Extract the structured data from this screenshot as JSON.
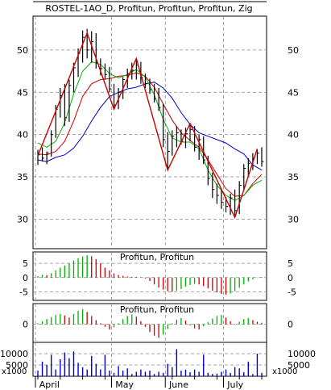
{
  "chart_data": {
    "type": "line",
    "main": {
      "title": "ROSTEL-1AO_D, Profitun, Profitun, Profitun, Zig",
      "ylim": [
        26.5,
        54
      ],
      "yticks": [
        50,
        45,
        40,
        35,
        30
      ],
      "bars": [
        [
          0,
          37.0,
          38.2,
          36.4,
          37.6
        ],
        [
          1,
          37.6,
          38.5,
          36.8,
          37.2
        ],
        [
          2,
          37.2,
          38.0,
          36.5,
          37.8
        ],
        [
          3,
          37.8,
          40.5,
          37.4,
          40.0
        ],
        [
          4,
          40.0,
          43.5,
          39.6,
          43.0
        ],
        [
          5,
          43.0,
          45.5,
          42.0,
          44.6
        ],
        [
          6,
          44.6,
          46.0,
          41.0,
          42.0
        ],
        [
          7,
          42.0,
          46.5,
          41.5,
          45.8
        ],
        [
          8,
          45.8,
          48.5,
          45.0,
          47.9
        ],
        [
          9,
          47.9,
          50.2,
          46.8,
          49.6
        ],
        [
          10,
          49.6,
          52.3,
          48.5,
          51.5
        ],
        [
          11,
          51.5,
          52.5,
          49.0,
          50.0
        ],
        [
          12,
          50.0,
          52.2,
          48.5,
          51.0
        ],
        [
          13,
          51.0,
          52.0,
          47.8,
          48.5
        ],
        [
          14,
          48.5,
          49.0,
          47.0,
          47.8
        ],
        [
          15,
          47.8,
          48.4,
          46.5,
          47.1
        ],
        [
          16,
          47.1,
          48.0,
          45.0,
          45.4
        ],
        [
          17,
          45.4,
          46.0,
          43.0,
          43.5
        ],
        [
          18,
          43.5,
          45.5,
          43.0,
          45.0
        ],
        [
          19,
          45.0,
          46.8,
          44.2,
          46.5
        ],
        [
          20,
          46.5,
          47.8,
          45.5,
          47.2
        ],
        [
          21,
          47.2,
          48.5,
          46.5,
          47.6
        ],
        [
          22,
          47.6,
          49.0,
          46.5,
          48.2
        ],
        [
          23,
          48.2,
          48.6,
          46.0,
          46.8
        ],
        [
          24,
          46.8,
          47.2,
          45.5,
          46.0
        ],
        [
          25,
          46.0,
          46.6,
          44.8,
          45.3
        ],
        [
          26,
          45.3,
          46.0,
          43.8,
          44.2
        ],
        [
          27,
          44.2,
          45.5,
          42.8,
          43.2
        ],
        [
          28,
          43.2,
          43.6,
          38.5,
          39.4
        ],
        [
          29,
          39.4,
          40.3,
          35.8,
          38.0
        ],
        [
          30,
          38.0,
          40.5,
          37.5,
          39.8
        ],
        [
          31,
          39.8,
          41.0,
          38.5,
          40.2
        ],
        [
          32,
          40.2,
          40.6,
          38.8,
          39.2
        ],
        [
          33,
          39.2,
          40.8,
          38.4,
          40.1
        ],
        [
          34,
          40.1,
          41.3,
          39.2,
          40.6
        ],
        [
          35,
          40.6,
          41.0,
          38.0,
          38.5
        ],
        [
          36,
          38.5,
          40.0,
          37.0,
          39.4
        ],
        [
          37,
          39.4,
          39.8,
          36.5,
          37.0
        ],
        [
          38,
          37.0,
          37.5,
          34.0,
          34.8
        ],
        [
          39,
          34.8,
          35.5,
          32.5,
          33.5
        ],
        [
          40,
          33.5,
          34.2,
          31.8,
          32.8
        ],
        [
          41,
          32.8,
          33.6,
          31.2,
          32.0
        ],
        [
          42,
          32.0,
          32.6,
          30.8,
          31.5
        ],
        [
          43,
          31.5,
          33.0,
          30.5,
          32.5
        ],
        [
          44,
          32.5,
          33.5,
          30.2,
          31.0
        ],
        [
          45,
          31.0,
          34.5,
          30.6,
          34.0
        ],
        [
          46,
          34.0,
          36.5,
          33.5,
          36.0
        ],
        [
          47,
          36.0,
          37.2,
          35.0,
          36.6
        ],
        [
          48,
          36.6,
          37.8,
          35.8,
          37.2
        ],
        [
          49,
          37.2,
          38.3,
          36.5,
          37.8
        ],
        [
          50,
          37.8,
          38.5,
          36.2,
          36.8
        ]
      ],
      "ma_slow": {
        "color": "#0000cc",
        "points": [
          [
            0,
            37.0
          ],
          [
            2,
            36.8
          ],
          [
            4,
            37.3
          ],
          [
            6,
            37.6
          ],
          [
            8,
            38.4
          ],
          [
            10,
            39.8
          ],
          [
            12,
            41.6
          ],
          [
            14,
            43.2
          ],
          [
            16,
            44.5
          ],
          [
            18,
            45.0
          ],
          [
            20,
            45.4
          ],
          [
            22,
            45.6
          ],
          [
            24,
            46.0
          ],
          [
            26,
            46.2
          ],
          [
            28,
            45.5
          ],
          [
            30,
            44.3
          ],
          [
            32,
            42.6
          ],
          [
            34,
            41.2
          ],
          [
            36,
            40.2
          ],
          [
            38,
            39.8
          ],
          [
            40,
            39.4
          ],
          [
            42,
            39.0
          ],
          [
            44,
            38.3
          ],
          [
            46,
            37.7
          ],
          [
            48,
            36.4
          ],
          [
            50,
            35.8
          ]
        ]
      },
      "ma_mid": {
        "color": "#cc0000",
        "points": [
          [
            0,
            37.7
          ],
          [
            2,
            37.6
          ],
          [
            4,
            38.0
          ],
          [
            6,
            39.2
          ],
          [
            8,
            41.6
          ],
          [
            10,
            44.5
          ],
          [
            12,
            46.0
          ],
          [
            14,
            46.5
          ],
          [
            16,
            46.6
          ],
          [
            18,
            46.9
          ],
          [
            20,
            47.0
          ],
          [
            22,
            47.3
          ],
          [
            24,
            46.9
          ],
          [
            26,
            45.6
          ],
          [
            28,
            43.6
          ],
          [
            30,
            41.7
          ],
          [
            32,
            40.2
          ],
          [
            34,
            39.3
          ],
          [
            36,
            38.5
          ],
          [
            38,
            37.0
          ],
          [
            40,
            35.3
          ],
          [
            42,
            33.6
          ],
          [
            44,
            32.7
          ],
          [
            46,
            32.8
          ],
          [
            48,
            34.2
          ],
          [
            50,
            35.3
          ]
        ]
      },
      "ma_fast": {
        "color": "#00b000",
        "points": [
          [
            0,
            39.0
          ],
          [
            2,
            38.5
          ],
          [
            4,
            39.2
          ],
          [
            6,
            41.4
          ],
          [
            8,
            44.8
          ],
          [
            10,
            47.5
          ],
          [
            12,
            48.6
          ],
          [
            14,
            48.3
          ],
          [
            16,
            47.2
          ],
          [
            18,
            46.7
          ],
          [
            20,
            47.1
          ],
          [
            22,
            47.7
          ],
          [
            24,
            46.8
          ],
          [
            26,
            44.7
          ],
          [
            28,
            41.8
          ],
          [
            30,
            39.6
          ],
          [
            32,
            39.1
          ],
          [
            34,
            39.1
          ],
          [
            36,
            38.3
          ],
          [
            38,
            35.8
          ],
          [
            40,
            34.0
          ],
          [
            42,
            32.8
          ],
          [
            44,
            32.2
          ],
          [
            46,
            32.8
          ],
          [
            48,
            34.0
          ],
          [
            50,
            34.6
          ]
        ]
      },
      "zig": {
        "color": "#cc0000",
        "points": [
          [
            0,
            37.5
          ],
          [
            11,
            52.0
          ],
          [
            17,
            43.0
          ],
          [
            22,
            49.0
          ],
          [
            29,
            35.8
          ],
          [
            34,
            41.3
          ],
          [
            44,
            30.2
          ],
          [
            49,
            38.3
          ]
        ]
      }
    },
    "osc1": {
      "title": "Profitun, Profitun",
      "ylim": [
        -8,
        9
      ],
      "yticks": [
        5,
        0,
        -5
      ],
      "values": [
        0.5,
        1.0,
        0.8,
        1.5,
        2.5,
        3.5,
        4.2,
        5.0,
        6.0,
        6.8,
        7.4,
        7.8,
        7.5,
        6.5,
        5.0,
        3.5,
        2.5,
        1.5,
        0.9,
        0.6,
        0.4,
        0.3,
        0.2,
        0.1,
        -0.3,
        -1.2,
        -2.4,
        -3.5,
        -4.2,
        -4.8,
        -5.0,
        -4.6,
        -4.0,
        -3.2,
        -2.6,
        -2.2,
        -2.4,
        -3.0,
        -3.8,
        -4.6,
        -5.2,
        -5.7,
        -6.0,
        -5.6,
        -4.8,
        -3.6,
        -2.4,
        -1.4,
        -0.6,
        -0.1,
        0.2
      ]
    },
    "osc2": {
      "title": "Profitun, Profitun",
      "ylim": [
        -3.5,
        4
      ],
      "yticks": [
        0
      ],
      "values": [
        0.2,
        0.6,
        1.0,
        1.4,
        1.8,
        2.0,
        1.7,
        1.3,
        2.0,
        2.6,
        2.9,
        2.4,
        1.6,
        0.8,
        0.2,
        -0.5,
        -1.0,
        -0.6,
        0.2,
        1.0,
        1.6,
        1.9,
        1.5,
        0.6,
        -0.5,
        -1.5,
        -2.2,
        -2.6,
        -2.0,
        -0.9,
        0.2,
        0.9,
        1.2,
        0.7,
        -0.2,
        -0.8,
        -1.0,
        -0.4,
        0.4,
        1.1,
        1.6,
        1.8,
        1.3,
        0.6,
        0.1,
        0.5,
        1.0,
        1.2,
        0.8,
        0.5,
        0.3
      ]
    },
    "volume": {
      "ylim": [
        0,
        15000
      ],
      "yticks": [
        10000,
        5000
      ],
      "values": [
        2500,
        6500,
        5000,
        9500,
        3000,
        7500,
        10500,
        8000,
        11000,
        6000,
        4000,
        3000,
        9000,
        5500,
        3000,
        9500,
        2500,
        1500,
        4500,
        2500,
        3500,
        1000,
        2000,
        3000,
        2000,
        2500,
        1000,
        2000,
        1500,
        5500,
        4000,
        12000,
        2500,
        3000,
        1800,
        3000,
        2000,
        9500,
        1500,
        1000,
        1200,
        2000,
        3000,
        1500,
        4000,
        3500,
        1800,
        6500,
        1000,
        10000,
        1500
      ],
      "scale_label": "x1000"
    },
    "x_axis": {
      "labels": [
        {
          "text": "April",
          "pos": 0.5
        },
        {
          "text": "May",
          "pos": 17.5
        },
        {
          "text": "June",
          "pos": 29.5
        },
        {
          "text": "July",
          "pos": 42.5
        }
      ],
      "month_ticks": [
        0,
        17,
        29,
        42
      ]
    }
  }
}
